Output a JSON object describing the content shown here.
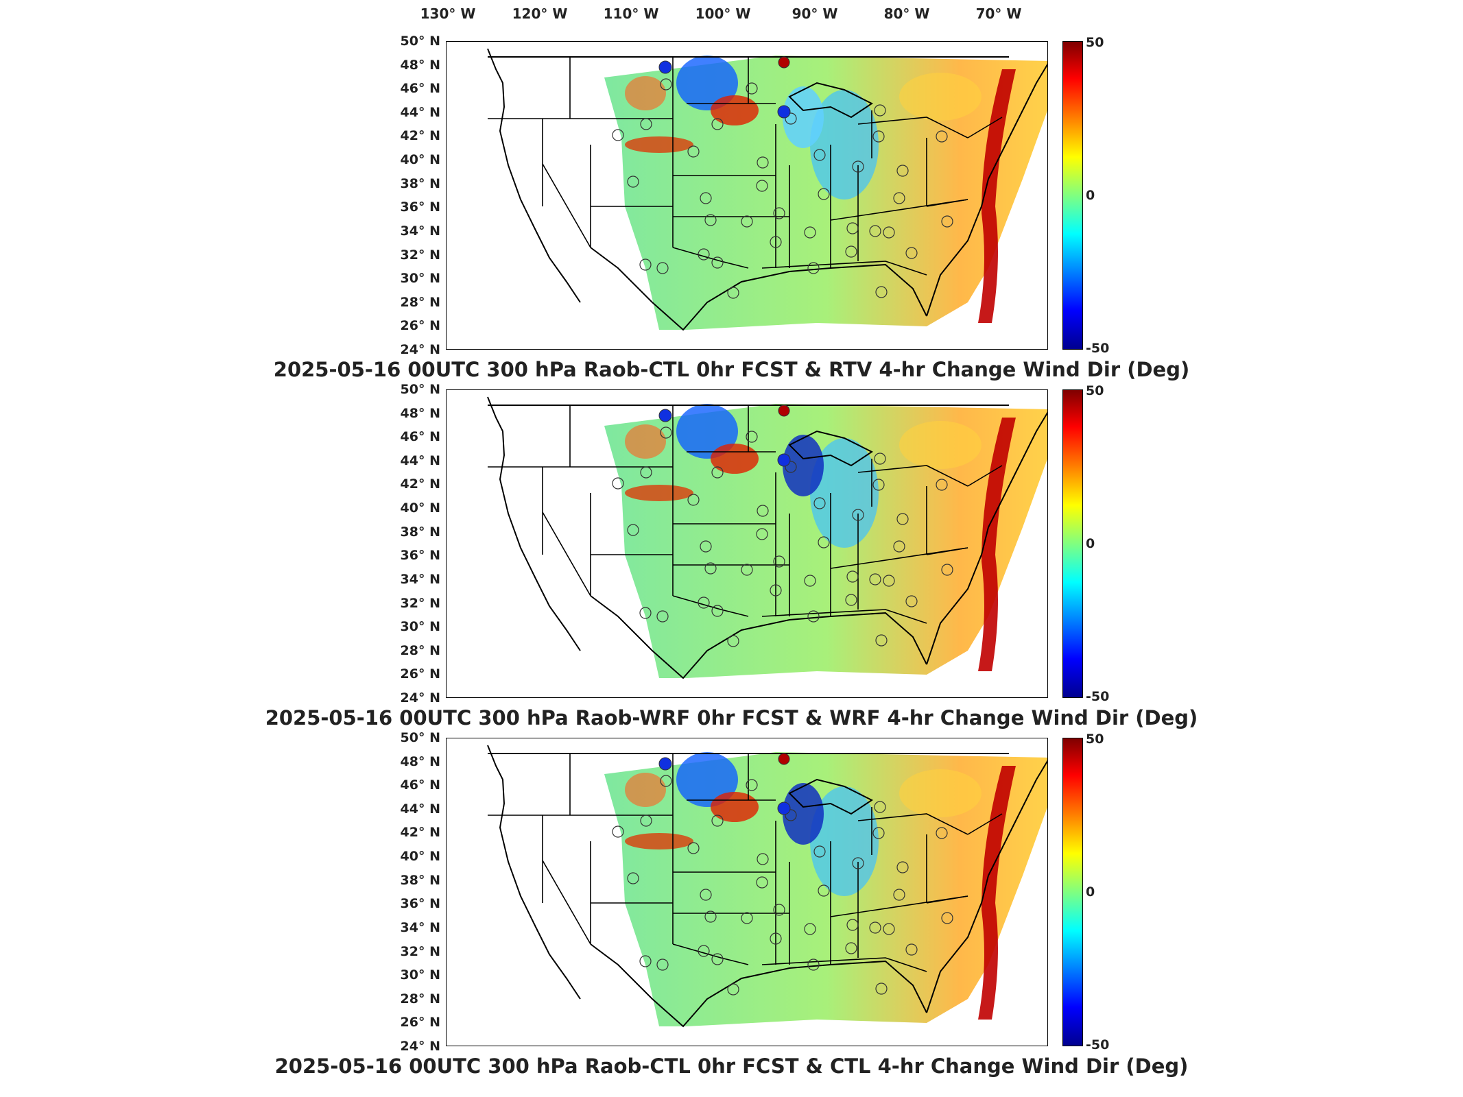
{
  "lon_labels": [
    "130° W",
    "120° W",
    "110° W",
    "100° W",
    "90° W",
    "80° W",
    "70° W"
  ],
  "lat_labels": [
    "50° N",
    "48° N",
    "46° N",
    "44° N",
    "42° N",
    "40° N",
    "38° N",
    "36° N",
    "34° N",
    "32° N",
    "30° N",
    "28° N",
    "26° N",
    "24° N"
  ],
  "colorbar": {
    "max": "50",
    "mid": "0",
    "min": "-50",
    "colors": [
      "#7f0000",
      "#ff0000",
      "#ff8000",
      "#ffff00",
      "#80ff80",
      "#00ffff",
      "#0080ff",
      "#0000ff",
      "#00008f"
    ]
  },
  "panels": [
    {
      "title": "2025-05-16 00UTC 300 hPa Raob-CTL 0hr FCST & RTV 4-hr Change Wind Dir (Deg)"
    },
    {
      "title": "2025-05-16 00UTC 300 hPa Raob-WRF 0hr FCST & WRF 4-hr Change Wind Dir (Deg)"
    },
    {
      "title": "2025-05-16 00UTC 300 hPa Raob-CTL 0hr FCST & CTL 4-hr Change Wind Dir (Deg)"
    }
  ]
}
